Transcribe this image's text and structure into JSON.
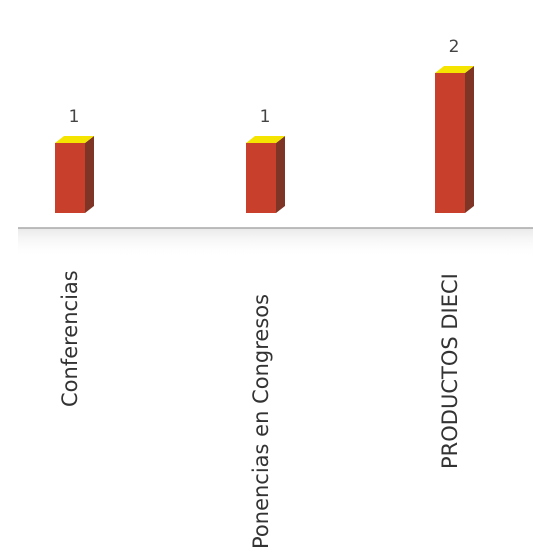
{
  "chart_data": {
    "type": "bar",
    "categories": [
      "Conferencias",
      "Ponencias en Congresos",
      "PRODUCTOS DIECI"
    ],
    "values": [
      1,
      1,
      2
    ],
    "data_labels": [
      "1",
      "1",
      "2"
    ],
    "title": "",
    "xlabel": "",
    "ylabel": "",
    "ylim": [
      0,
      2.3
    ],
    "grid": false,
    "legend": "none",
    "style": "3d-column"
  },
  "colors": {
    "bar_front": "#c8402c",
    "bar_side": "#7e3526",
    "bar_top": "#f5e400",
    "axis": "#a9a9a9",
    "floor_shadow": "#ececec"
  }
}
